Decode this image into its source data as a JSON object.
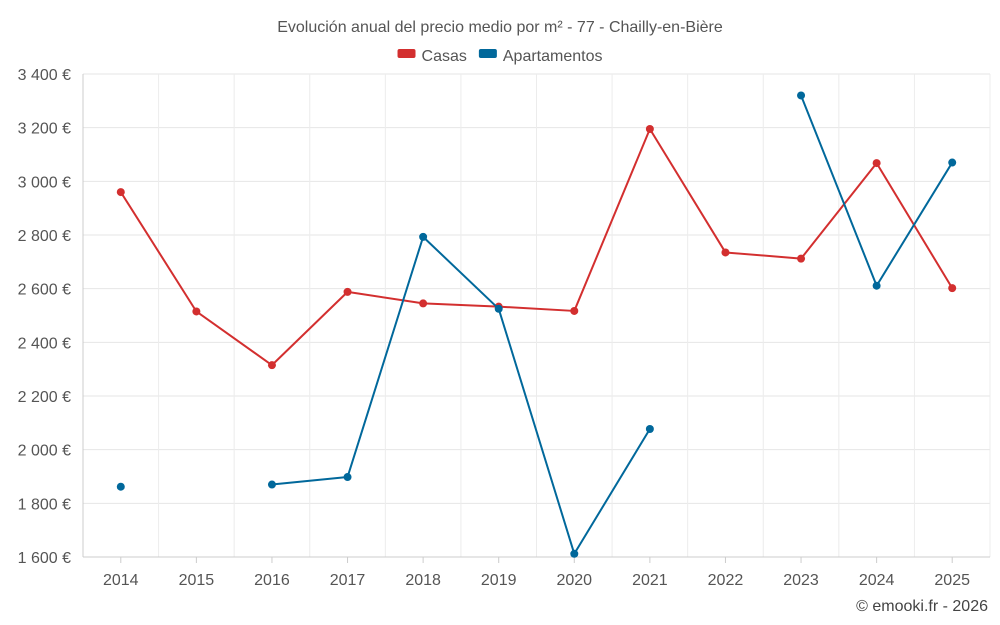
{
  "chart_data": {
    "type": "line",
    "title": "Evolución anual del precio medio por m² - 77 - Chailly-en-Bière",
    "categories": [
      "2014",
      "2015",
      "2016",
      "2017",
      "2018",
      "2019",
      "2020",
      "2021",
      "2022",
      "2023",
      "2024",
      "2025"
    ],
    "ylim": [
      1600,
      3400
    ],
    "yticks": [
      1600,
      1800,
      2000,
      2200,
      2400,
      2600,
      2800,
      3000,
      3200,
      3400
    ],
    "ytick_labels": [
      "1 600 €",
      "1 800 €",
      "2 000 €",
      "2 200 €",
      "2 400 €",
      "2 600 €",
      "2 800 €",
      "3 000 €",
      "3 200 €",
      "3 400 €"
    ],
    "legend_position": "top-center",
    "grid": true,
    "series": [
      {
        "name": "Casas",
        "color": "#d32f2f",
        "values": [
          2960,
          2515,
          2315,
          2588,
          2545,
          2533,
          2517,
          3195,
          2735,
          2712,
          3068,
          2602
        ]
      },
      {
        "name": "Apartamentos",
        "color": "#01689b",
        "values": [
          1862,
          null,
          1870,
          1898,
          2793,
          2525,
          1612,
          2077,
          null,
          3320,
          2611,
          3070
        ]
      }
    ],
    "footer": "© emooki.fr - 2026"
  }
}
